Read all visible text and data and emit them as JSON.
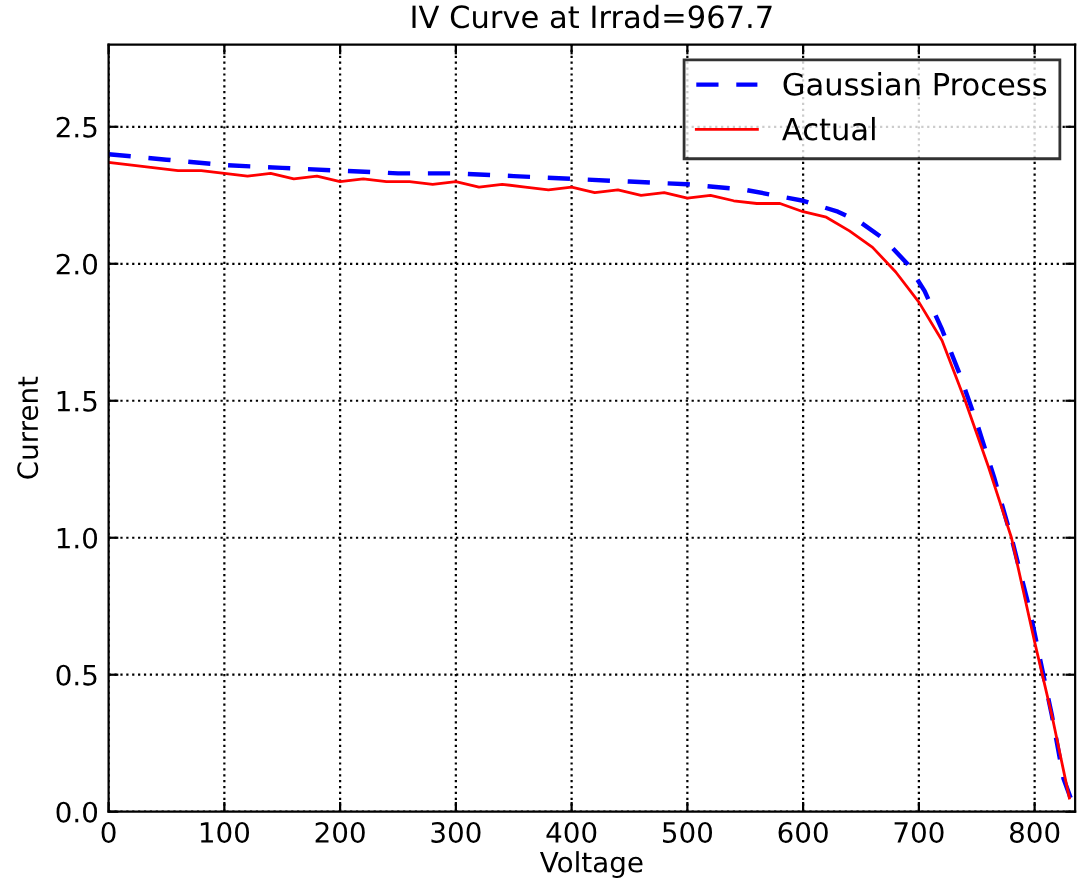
{
  "chart_data": {
    "type": "line",
    "title": "IV Curve at Irrad=967.7",
    "xlabel": "Voltage",
    "ylabel": "Current",
    "xlim": [
      0,
      835
    ],
    "ylim": [
      0,
      2.8
    ],
    "xticks": [
      0,
      100,
      200,
      300,
      400,
      500,
      600,
      700,
      800
    ],
    "yticks": [
      {
        "value": 0,
        "label": "0.0"
      },
      0.5,
      {
        "value": 1,
        "label": "1.0"
      },
      1.5,
      {
        "value": 2,
        "label": "2.0"
      },
      2.5
    ],
    "grid": true,
    "legend": "top right",
    "series": [
      {
        "name": "Gaussian Process",
        "color": "#0000ff",
        "line_style": "dashed",
        "x": [
          0,
          50,
          100,
          150,
          200,
          250,
          300,
          350,
          400,
          450,
          500,
          550,
          600,
          630,
          650,
          670,
          690,
          705,
          720,
          735,
          750,
          765,
          780,
          795,
          805,
          815,
          825,
          832
        ],
        "values": [
          2.4,
          2.38,
          2.36,
          2.35,
          2.34,
          2.33,
          2.33,
          2.32,
          2.31,
          2.3,
          2.29,
          2.27,
          2.23,
          2.19,
          2.15,
          2.09,
          2.0,
          1.9,
          1.76,
          1.6,
          1.42,
          1.22,
          1.0,
          0.75,
          0.55,
          0.35,
          0.12,
          0.04
        ]
      },
      {
        "name": "Actual",
        "color": "#ff0000",
        "line_style": "solid",
        "x": [
          0,
          20,
          40,
          60,
          80,
          100,
          120,
          140,
          160,
          180,
          200,
          220,
          240,
          260,
          280,
          300,
          320,
          340,
          360,
          380,
          400,
          420,
          440,
          460,
          480,
          500,
          520,
          540,
          560,
          580,
          600,
          620,
          640,
          660,
          680,
          700,
          720,
          740,
          760,
          780,
          800,
          815,
          825,
          830
        ],
        "values": [
          2.37,
          2.36,
          2.35,
          2.34,
          2.34,
          2.33,
          2.32,
          2.33,
          2.31,
          2.32,
          2.3,
          2.31,
          2.3,
          2.3,
          2.29,
          2.3,
          2.28,
          2.29,
          2.28,
          2.27,
          2.28,
          2.26,
          2.27,
          2.25,
          2.26,
          2.24,
          2.25,
          2.23,
          2.22,
          2.22,
          2.19,
          2.17,
          2.12,
          2.06,
          1.97,
          1.86,
          1.72,
          1.5,
          1.26,
          1.0,
          0.62,
          0.35,
          0.15,
          0.05
        ]
      }
    ]
  }
}
